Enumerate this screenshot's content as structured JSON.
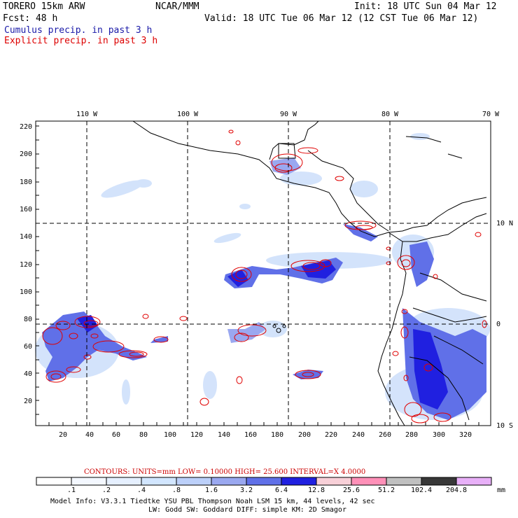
{
  "header": {
    "model": "TORERO  15km ARW",
    "org": "NCAR/MMM",
    "init": "Init: 18 UTC Sun 04 Mar 12",
    "fcst": "Fcst:   48 h",
    "valid": "Valid: 18 UTC Tue 06 Mar 12 (12 CST Tue 06 Mar 12)",
    "legend_cumulus": "Cumulus precip. in past 3 h",
    "legend_explicit": "Explicit precip. in past 3 h"
  },
  "map": {
    "lon_labels": [
      "110 W",
      "100 W",
      "90 W",
      "80 W",
      "70 W"
    ],
    "lat_labels": [
      "10 N",
      "0",
      "10 S"
    ],
    "y_ticks": [
      "220",
      "200",
      "180",
      "160",
      "140",
      "120",
      "100",
      "80",
      "60",
      "40",
      "20"
    ],
    "x_ticks": [
      "20",
      "40",
      "60",
      "80",
      "100",
      "120",
      "140",
      "160",
      "180",
      "200",
      "220",
      "240",
      "260",
      "280",
      "300",
      "320"
    ]
  },
  "contour_info": "CONTOURS:  UNITS=mm  LOW= 0.10000      HIGH=  25.600      INTERVAL=X  4.0000",
  "colorbar": {
    "labels": [
      ".1",
      ".2",
      ".4",
      ".8",
      "1.6",
      "3.2",
      "6.4",
      "12.8",
      "25.6",
      "51.2",
      "102.4",
      "204.8"
    ],
    "unit": "mm",
    "colors": [
      "#ffffff",
      "#f4f8ff",
      "#e6f0ff",
      "#d2e6ff",
      "#bcd0fa",
      "#9aa8f0",
      "#6070e8",
      "#2020e0",
      "#f8d0d8",
      "#ff90b8",
      "#c0c0c0",
      "#383838",
      "#e8b0f8"
    ]
  },
  "footer": {
    "line1": "Model Info: V3.3.1     Tiedtke YSU PBL  Thompson     Noah LSM  15 km,    44 levels,    42 sec",
    "line2": "LW: Godd SW: Goddard DIFF: simple KM: 2D Smagor"
  }
}
